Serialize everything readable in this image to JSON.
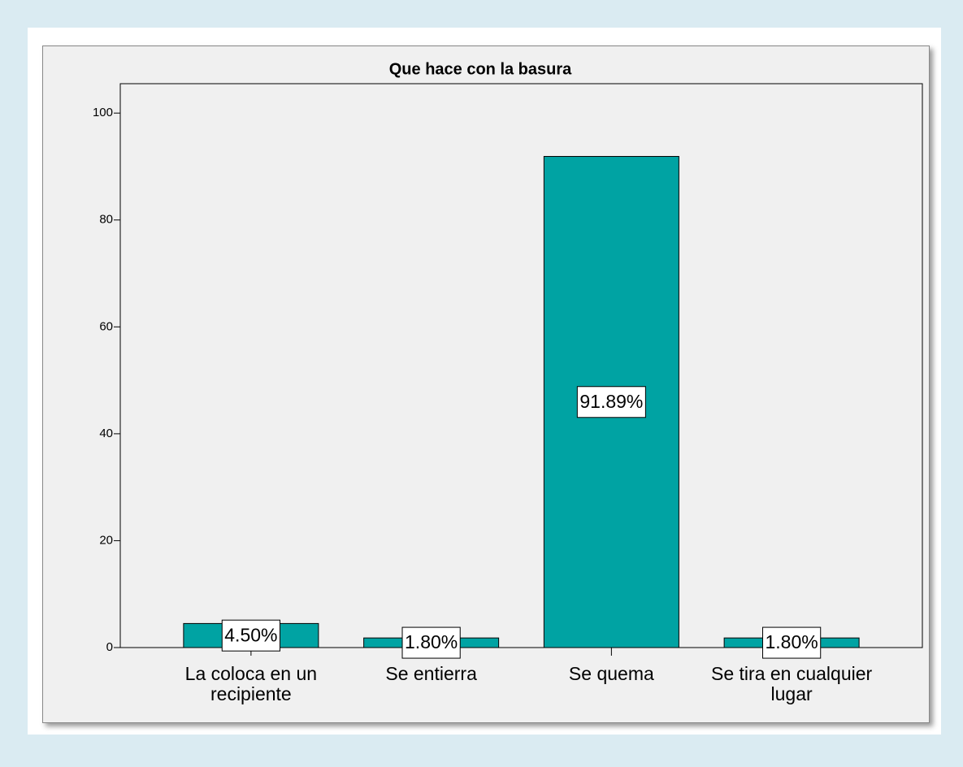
{
  "chart_data": {
    "type": "bar",
    "title": "Que hace con la basura",
    "categories": [
      "La coloca en un recipiente",
      "Se entierra",
      "Se quema",
      "Se tira en cualquier lugar"
    ],
    "values": [
      4.5,
      1.8,
      91.89,
      1.8
    ],
    "value_labels": [
      "4.50%",
      "1.80%",
      "91.89%",
      "1.80%"
    ],
    "color": "#00a3a3",
    "ylim": [
      0,
      105.5
    ],
    "yticks": [
      0,
      20,
      40,
      60,
      80,
      100
    ],
    "grid": false
  }
}
